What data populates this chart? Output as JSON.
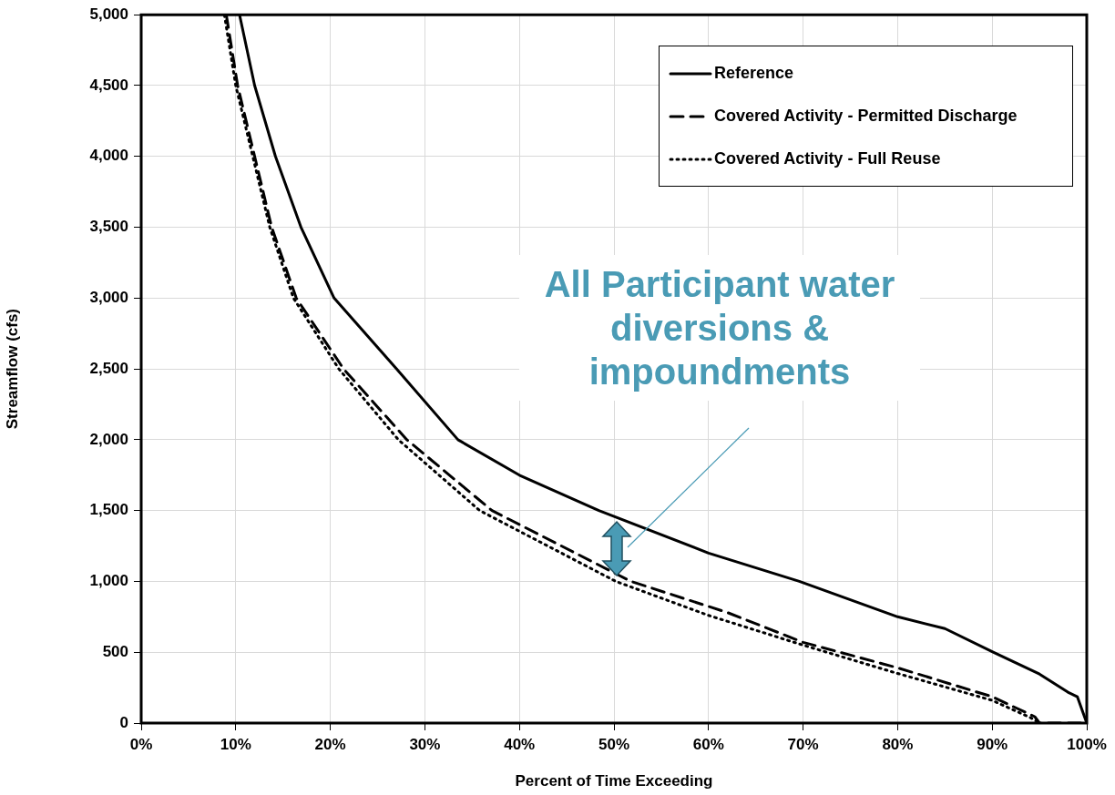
{
  "chart_data": {
    "type": "line",
    "xlabel": "Percent of Time Exceeding",
    "ylabel": "Streamflow (cfs)",
    "xlim": [
      0,
      100
    ],
    "xticks": [
      {
        "value": 0,
        "label": "0%"
      },
      {
        "value": 10,
        "label": "10%"
      },
      {
        "value": 20,
        "label": "20%"
      },
      {
        "value": 30,
        "label": "30%"
      },
      {
        "value": 40,
        "label": "40%"
      },
      {
        "value": 50,
        "label": "50%"
      },
      {
        "value": 60,
        "label": "60%"
      },
      {
        "value": 70,
        "label": "70%"
      },
      {
        "value": 80,
        "label": "80%"
      },
      {
        "value": 90,
        "label": "90%"
      },
      {
        "value": 100,
        "label": "100%"
      }
    ],
    "ylim": [
      0,
      5000
    ],
    "yticks": [
      {
        "value": 0,
        "label": "0"
      },
      {
        "value": 500,
        "label": "500"
      },
      {
        "value": 1000,
        "label": "1,000"
      },
      {
        "value": 1500,
        "label": "1,500"
      },
      {
        "value": 2000,
        "label": "2,000"
      },
      {
        "value": 2500,
        "label": "2,500"
      },
      {
        "value": 3000,
        "label": "3,000"
      },
      {
        "value": 3500,
        "label": "3,500"
      },
      {
        "value": 4000,
        "label": "4,000"
      },
      {
        "value": 4500,
        "label": "4,500"
      },
      {
        "value": 5000,
        "label": "5,000"
      }
    ],
    "grid": true,
    "legend": "top right",
    "marker": "none",
    "series": [
      {
        "name": "Reference",
        "color": "#000000",
        "line_style": "solid",
        "x": [
          10.4,
          12.0,
          14.2,
          16.9,
          20.4,
          27.0,
          33.5,
          40,
          48.4,
          60,
          69.6,
          80,
          85,
          90.1,
          95,
          98,
          99,
          100
        ],
        "values": [
          5000,
          4500,
          4000,
          3500,
          3000,
          2500,
          2000,
          1750,
          1500,
          1200,
          1000,
          750,
          667,
          500,
          346,
          218,
          186,
          0
        ]
      },
      {
        "name": "Covered Activity - Permitted Discharge",
        "color": "#000000",
        "line_style": "dashed",
        "x": [
          9.0,
          10.2,
          12.0,
          13.8,
          16.4,
          21.4,
          28.1,
          37.1,
          51.8,
          62,
          70,
          80,
          90,
          94.5,
          95,
          100
        ],
        "values": [
          5000,
          4500,
          4000,
          3500,
          3000,
          2500,
          2000,
          1500,
          1000,
          780,
          570,
          390,
          186,
          45,
          0,
          0
        ]
      },
      {
        "name": "Covered Activity - Full Reuse",
        "color": "#000000",
        "line_style": "dotted",
        "x": [
          8.8,
          10.0,
          11.8,
          13.6,
          16.1,
          20.9,
          27.2,
          35.8,
          50.2,
          60,
          70,
          80,
          90,
          94,
          95
        ],
        "values": [
          5000,
          4500,
          4000,
          3500,
          3000,
          2500,
          2000,
          1500,
          1000,
          760,
          550,
          350,
          160,
          40,
          0
        ]
      }
    ],
    "annotations": [
      "All Participant water diversions & impoundments"
    ]
  }
}
